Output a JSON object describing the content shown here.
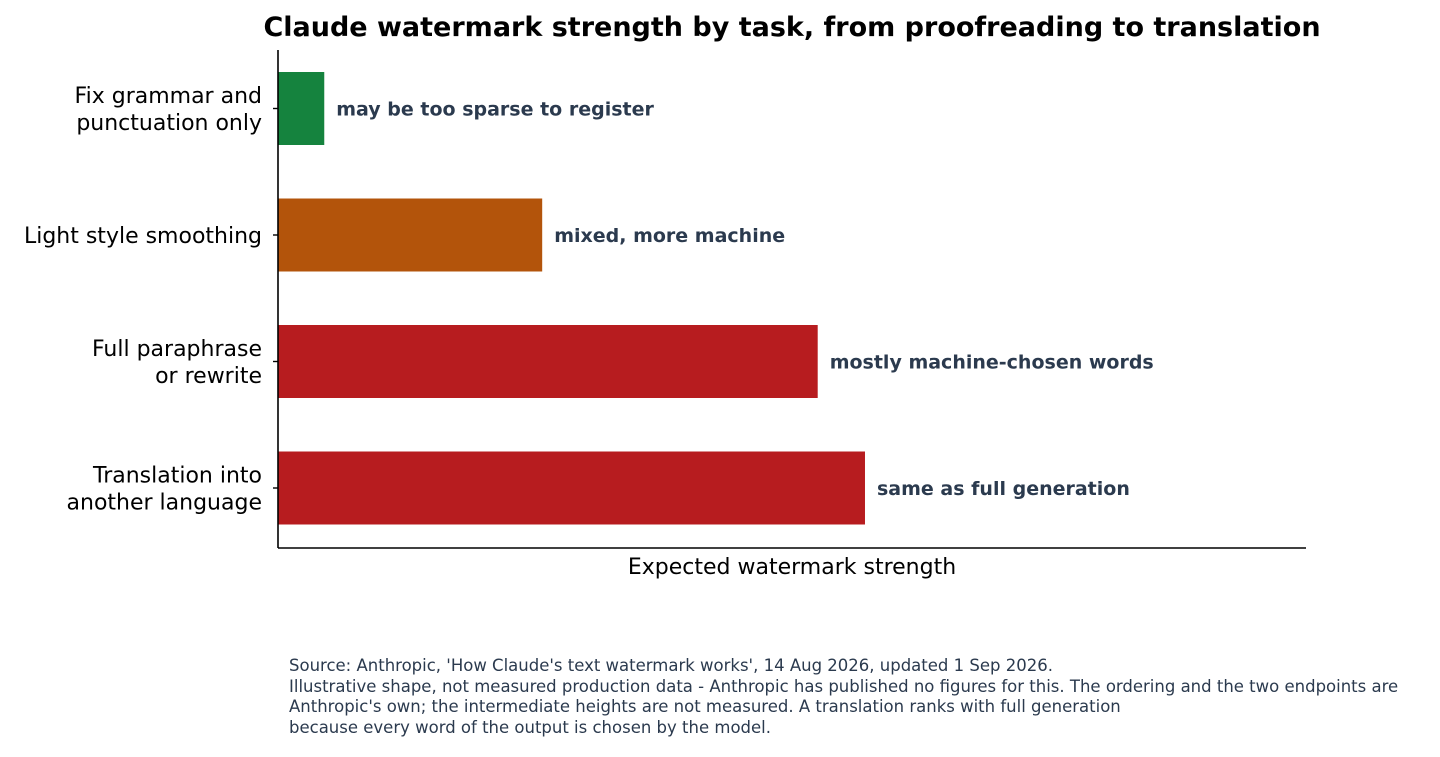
{
  "chart_data": {
    "type": "bar",
    "orientation": "horizontal",
    "title": "Claude watermark strength by task, from proofreading to translation",
    "xlabel": "Expected watermark strength",
    "ylabel": "",
    "xlim": [
      0,
      1
    ],
    "grid": false,
    "categories": [
      [
        "Fix grammar and",
        "punctuation only"
      ],
      [
        "Light style smoothing"
      ],
      [
        "Full paraphrase",
        "or rewrite"
      ],
      [
        "Translation into",
        "another language"
      ]
    ],
    "values": [
      0.045,
      0.257,
      0.525,
      0.571
    ],
    "colors": [
      "#15833e",
      "#b3540b",
      "#b71c1f",
      "#b71c1f"
    ],
    "annotations": [
      "may be too sparse to register",
      "mixed, more machine",
      "mostly machine-chosen words",
      "same as full generation"
    ]
  },
  "footnote": [
    "Source: Anthropic, 'How Claude's text watermark works', 14 Aug 2026, updated 1 Sep 2026.",
    "Illustrative shape, not measured production data - Anthropic has published no figures for this. The ordering and the two endpoints are",
    "Anthropic's own; the intermediate heights are not measured. A translation ranks with full generation",
    "because every word of the output is chosen by the model."
  ]
}
